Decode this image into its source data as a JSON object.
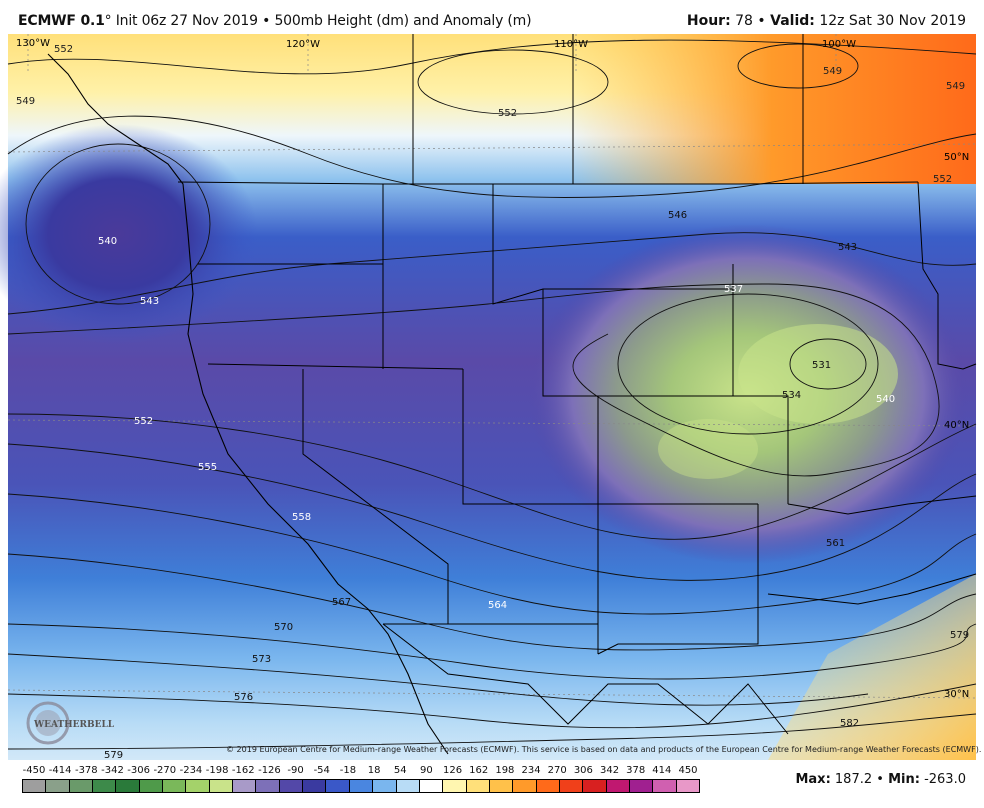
{
  "header": {
    "model": "ECMWF 0.1",
    "degree": "°",
    "init_text": "Init 06z 27 Nov 2019",
    "bullet": "•",
    "product": "500mb Height (dm) and Anomaly (m)",
    "hour_label": "Hour:",
    "hour_value": "78",
    "valid_label": "Valid:",
    "valid_value": "12z Sat 30 Nov 2019"
  },
  "map": {
    "longitude_labels": [
      "130°W",
      "120°W",
      "110°W",
      "100°W"
    ],
    "latitude_labels": [
      "50°N",
      "40°N",
      "30°N"
    ],
    "contour_labels": [
      "552",
      "549",
      "552",
      "549",
      "549",
      "552",
      "540",
      "546",
      "543",
      "537",
      "543",
      "531",
      "534",
      "540",
      "552",
      "555",
      "558",
      "561",
      "564",
      "567",
      "570",
      "573",
      "576",
      "579",
      "579",
      "582"
    ],
    "credit": "© 2019 European Centre for Medium-range Weather Forecasts (ECMWF). This service is based on data and products of the European Centre for Medium-range Weather Forecasts (ECMWF).",
    "logo_text": "WEATHERBELL"
  },
  "colorbar": {
    "labels": [
      "-450",
      "-414",
      "-378",
      "-342",
      "-306",
      "-270",
      "-234",
      "-198",
      "-162",
      "-126",
      "-90",
      "-54",
      "-18",
      "18",
      "54",
      "90",
      "126",
      "162",
      "198",
      "234",
      "270",
      "306",
      "342",
      "378",
      "414",
      "450"
    ],
    "colors": [
      "#9e9e9e",
      "#8aa08a",
      "#6a9a6a",
      "#3d8a4a",
      "#2a7a3a",
      "#4f9a4a",
      "#7ab85a",
      "#a4d26a",
      "#c9e38a",
      "#a89ac8",
      "#7d70b8",
      "#5348a8",
      "#3a3aa0",
      "#3a58c8",
      "#4a86e0",
      "#7ab6ee",
      "#b8dcf6",
      "#ffffff",
      "#fff6b0",
      "#ffe07a",
      "#ffc14a",
      "#ff9a2a",
      "#ff6a1a",
      "#f0401a",
      "#d82020",
      "#c01870",
      "#a02090",
      "#d060b0",
      "#e898c8"
    ],
    "max_label": "Max:",
    "max_value": "187.2",
    "separator": "•",
    "min_label": "Min:",
    "min_value": "-263.0"
  }
}
